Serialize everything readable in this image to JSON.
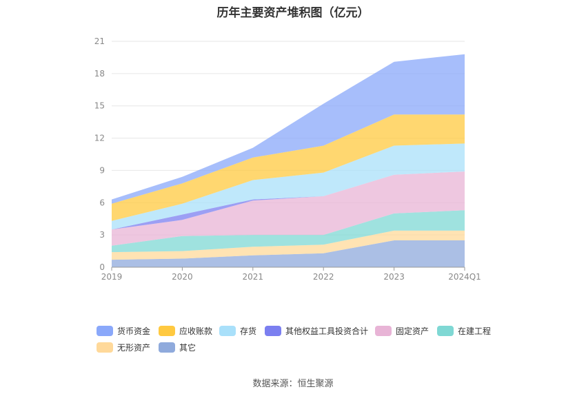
{
  "title": "历年主要资产堆积图（亿元）",
  "source": "数据来源：恒生聚源",
  "chart_data": {
    "type": "area",
    "stacked": true,
    "categories": [
      "2019",
      "2020",
      "2021",
      "2022",
      "2023",
      "2024Q1"
    ],
    "y_ticks": [
      "0",
      "3",
      "6",
      "9",
      "12",
      "15",
      "18",
      "21"
    ],
    "ylim": [
      0,
      21
    ],
    "grid": true,
    "legend_position": "bottom",
    "series": [
      {
        "name": "其它",
        "color": "#8faadc",
        "values": [
          0.7,
          0.8,
          1.1,
          1.3,
          2.5,
          2.5
        ]
      },
      {
        "name": "无形资产",
        "color": "#ffd99a",
        "values": [
          0.7,
          0.7,
          0.8,
          0.8,
          0.9,
          0.9
        ]
      },
      {
        "name": "在建工程",
        "color": "#7fd8d4",
        "values": [
          0.6,
          1.4,
          1.1,
          0.9,
          1.6,
          1.9
        ]
      },
      {
        "name": "固定资产",
        "color": "#e8b4d6",
        "values": [
          1.5,
          1.5,
          3.2,
          3.6,
          3.6,
          3.6
        ]
      },
      {
        "name": "其他权益工具投资合计",
        "color": "#7b7ff0",
        "values": [
          0.0,
          0.5,
          0.1,
          0.0,
          0.0,
          0.0
        ]
      },
      {
        "name": "存货",
        "color": "#a9e0fa",
        "values": [
          0.8,
          1.0,
          1.8,
          2.2,
          2.7,
          2.6
        ]
      },
      {
        "name": "应收账款",
        "color": "#ffc940",
        "values": [
          1.6,
          1.9,
          2.1,
          2.5,
          2.9,
          2.7
        ]
      },
      {
        "name": "货币资金",
        "color": "#8aa8fa",
        "values": [
          0.4,
          0.6,
          0.9,
          3.9,
          4.9,
          5.6
        ]
      }
    ],
    "legend_order": [
      "货币资金",
      "应收账款",
      "存货",
      "其他权益工具投资合计",
      "固定资产",
      "在建工程",
      "无形资产",
      "其它"
    ]
  }
}
